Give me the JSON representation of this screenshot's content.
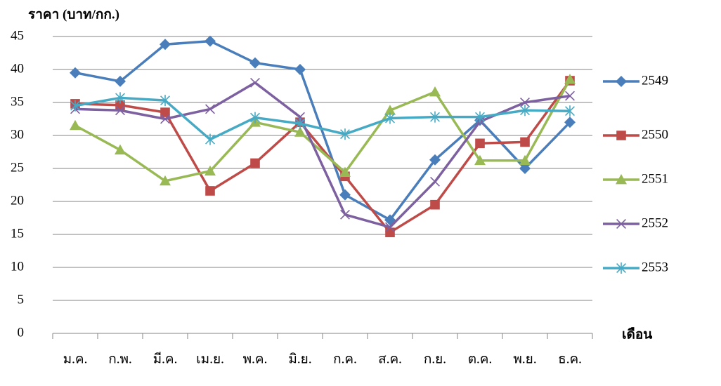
{
  "chart_data": {
    "type": "line",
    "y_label": "ราคา (บาท/กก.)",
    "x_label": "เดือน",
    "categories": [
      "ม.ค.",
      "ก.พ.",
      "มี.ค.",
      "เม.ย.",
      "พ.ค.",
      "มิ.ย.",
      "ก.ค.",
      "ส.ค.",
      "ก.ย.",
      "ต.ค.",
      "พ.ย.",
      "ธ.ค."
    ],
    "series": [
      {
        "name": "2549",
        "color": "#4a7ebb",
        "marker": "diamond",
        "values": [
          39.5,
          38.2,
          43.8,
          44.3,
          41,
          40,
          21,
          17.2,
          26.3,
          32.3,
          25,
          32
        ]
      },
      {
        "name": "2550",
        "color": "#be4b48",
        "marker": "square",
        "values": [
          34.8,
          34.6,
          33.5,
          21.6,
          25.8,
          32,
          23.8,
          15.3,
          19.5,
          28.8,
          29,
          38.3
        ]
      },
      {
        "name": "2551",
        "color": "#98b954",
        "marker": "triangle",
        "values": [
          31.5,
          27.8,
          23.1,
          24.6,
          32,
          30.5,
          24.4,
          33.8,
          36.6,
          26.2,
          26.2,
          38.5
        ]
      },
      {
        "name": "2552",
        "color": "#7d60a0",
        "marker": "x",
        "values": [
          34,
          33.8,
          32.5,
          34,
          38,
          32.8,
          18,
          16.1,
          23,
          32.1,
          35,
          36
        ]
      },
      {
        "name": "2553",
        "color": "#46aac5",
        "marker": "star",
        "values": [
          34.5,
          35.7,
          35.3,
          29.4,
          32.7,
          31.8,
          30.2,
          32.6,
          32.8,
          32.8,
          33.8,
          33.7
        ]
      }
    ],
    "ylim": [
      0,
      45
    ],
    "yticks": [
      0,
      5,
      10,
      15,
      20,
      25,
      30,
      35,
      40,
      45
    ],
    "grid": true,
    "legend": "right"
  }
}
